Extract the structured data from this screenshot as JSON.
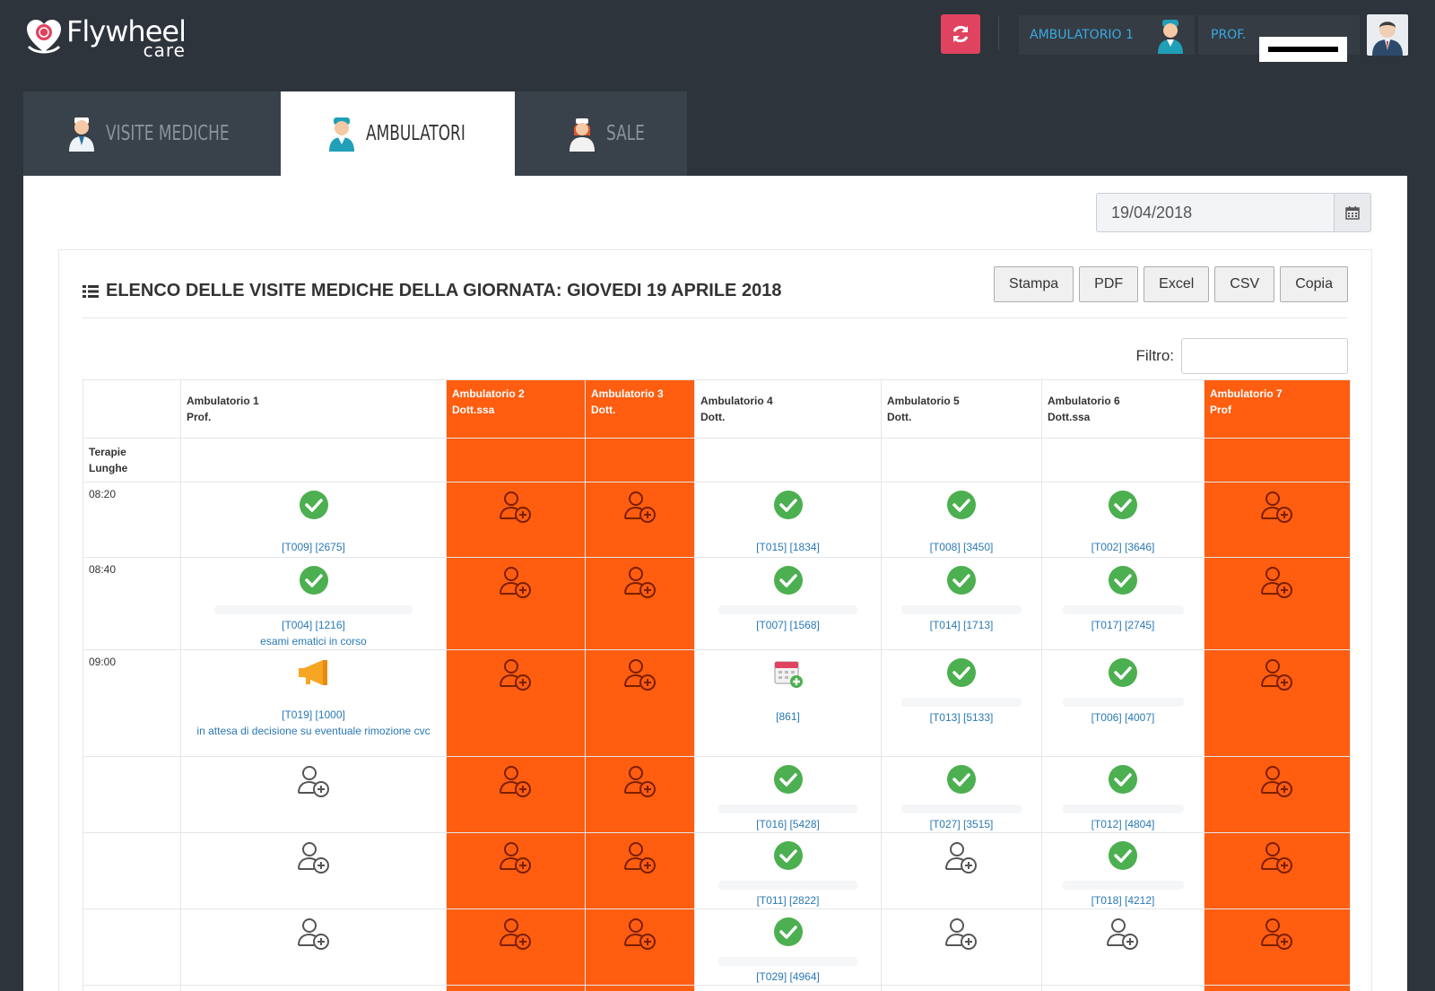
{
  "header": {
    "logo_word": "Flywheel",
    "logo_sub": "care",
    "ambulatorio_label": "AMBULATORIO 1",
    "prof_label": "PROF."
  },
  "tabs": [
    {
      "label": "VISITE MEDICHE",
      "active": false
    },
    {
      "label": "AMBULATORI",
      "active": true
    },
    {
      "label": "SALE",
      "active": false
    }
  ],
  "date": {
    "value": "19/04/2018"
  },
  "list": {
    "title": "ELENCO DELLE VISITE MEDICHE DELLA GIORNATA: GIOVEDI 19 APRILE 2018",
    "export_buttons": [
      "Stampa",
      "PDF",
      "Excel",
      "CSV",
      "Copia"
    ],
    "filter_label": "Filtro:",
    "filter_value": ""
  },
  "table": {
    "columns": [
      {
        "line1": "Ambulatorio 1",
        "line2": "Prof.",
        "busy": false
      },
      {
        "line1": "Ambulatorio 2",
        "line2": "Dott.ssa",
        "busy": true
      },
      {
        "line1": "Ambulatorio 3",
        "line2": "Dott.",
        "busy": true
      },
      {
        "line1": "Ambulatorio 4",
        "line2": "Dott.",
        "busy": false
      },
      {
        "line1": "Ambulatorio 5",
        "line2": "Dott.",
        "busy": false
      },
      {
        "line1": "Ambulatorio 6",
        "line2": "Dott.ssa",
        "busy": false
      },
      {
        "line1": "Ambulatorio 7",
        "line2": "Prof",
        "busy": true
      }
    ],
    "terapie_label_1": "Terapie",
    "terapie_label_2": "Lunghe",
    "rows": [
      {
        "time": "08:20",
        "cells": [
          {
            "type": "ok",
            "code": "[T009] [2675]"
          },
          {
            "type": "add"
          },
          {
            "type": "add"
          },
          {
            "type": "ok",
            "code": "[T015] [1834]"
          },
          {
            "type": "ok",
            "code": "[T008] [3450]"
          },
          {
            "type": "ok",
            "code": "[T002] [3646]"
          },
          {
            "type": "add"
          }
        ]
      },
      {
        "time": "08:40",
        "cells": [
          {
            "type": "ok",
            "code": "[T004] [1216]",
            "note": "esami ematici in corso"
          },
          {
            "type": "add"
          },
          {
            "type": "add"
          },
          {
            "type": "ok",
            "code": "[T007] [1568]"
          },
          {
            "type": "ok",
            "code": "[T014] [1713]"
          },
          {
            "type": "ok",
            "code": "[T017] [2745]"
          },
          {
            "type": "add"
          }
        ]
      },
      {
        "time": "09:00",
        "cells": [
          {
            "type": "alert",
            "code": "[T019] [1000]",
            "note": "in attesa di decisione su eventuale rimozione cvc"
          },
          {
            "type": "add"
          },
          {
            "type": "add"
          },
          {
            "type": "calendar",
            "code": "[861]"
          },
          {
            "type": "ok",
            "code": "[T013] [5133]"
          },
          {
            "type": "ok",
            "code": "[T006] [4007]"
          },
          {
            "type": "add"
          }
        ]
      },
      {
        "time": "",
        "cells": [
          {
            "type": "add"
          },
          {
            "type": "add"
          },
          {
            "type": "add"
          },
          {
            "type": "ok",
            "code": "[T016] [5428]"
          },
          {
            "type": "ok",
            "code": "[T027] [3515]"
          },
          {
            "type": "ok",
            "code": "[T012] [4804]"
          },
          {
            "type": "add"
          }
        ]
      },
      {
        "time": "",
        "cells": [
          {
            "type": "add"
          },
          {
            "type": "add"
          },
          {
            "type": "add"
          },
          {
            "type": "ok",
            "code": "[T011] [2822]"
          },
          {
            "type": "add"
          },
          {
            "type": "ok",
            "code": "[T018] [4212]"
          },
          {
            "type": "add"
          }
        ]
      },
      {
        "time": "",
        "cells": [
          {
            "type": "add"
          },
          {
            "type": "add"
          },
          {
            "type": "add"
          },
          {
            "type": "ok",
            "code": "[T029] [4964]"
          },
          {
            "type": "add"
          },
          {
            "type": "add"
          },
          {
            "type": "add"
          }
        ]
      },
      {
        "time": "",
        "cells": [
          {
            "type": "add"
          },
          {
            "type": "add"
          },
          {
            "type": "add"
          },
          {
            "type": "add"
          },
          {
            "type": "add"
          },
          {
            "type": "add"
          },
          {
            "type": "add"
          }
        ]
      }
    ]
  },
  "colors": {
    "background": "#2e343b",
    "busy": "#ff5d10",
    "ok": "#4caf50",
    "link": "#2a79b4",
    "refresh": "#e0435f"
  },
  "icons": {
    "refresh": "refresh-icon",
    "calendar": "calendar-icon",
    "list": "list-icon",
    "ok": "check-circle-icon",
    "add": "add-user-icon",
    "alert": "megaphone-icon",
    "appointment": "calendar-add-icon"
  }
}
